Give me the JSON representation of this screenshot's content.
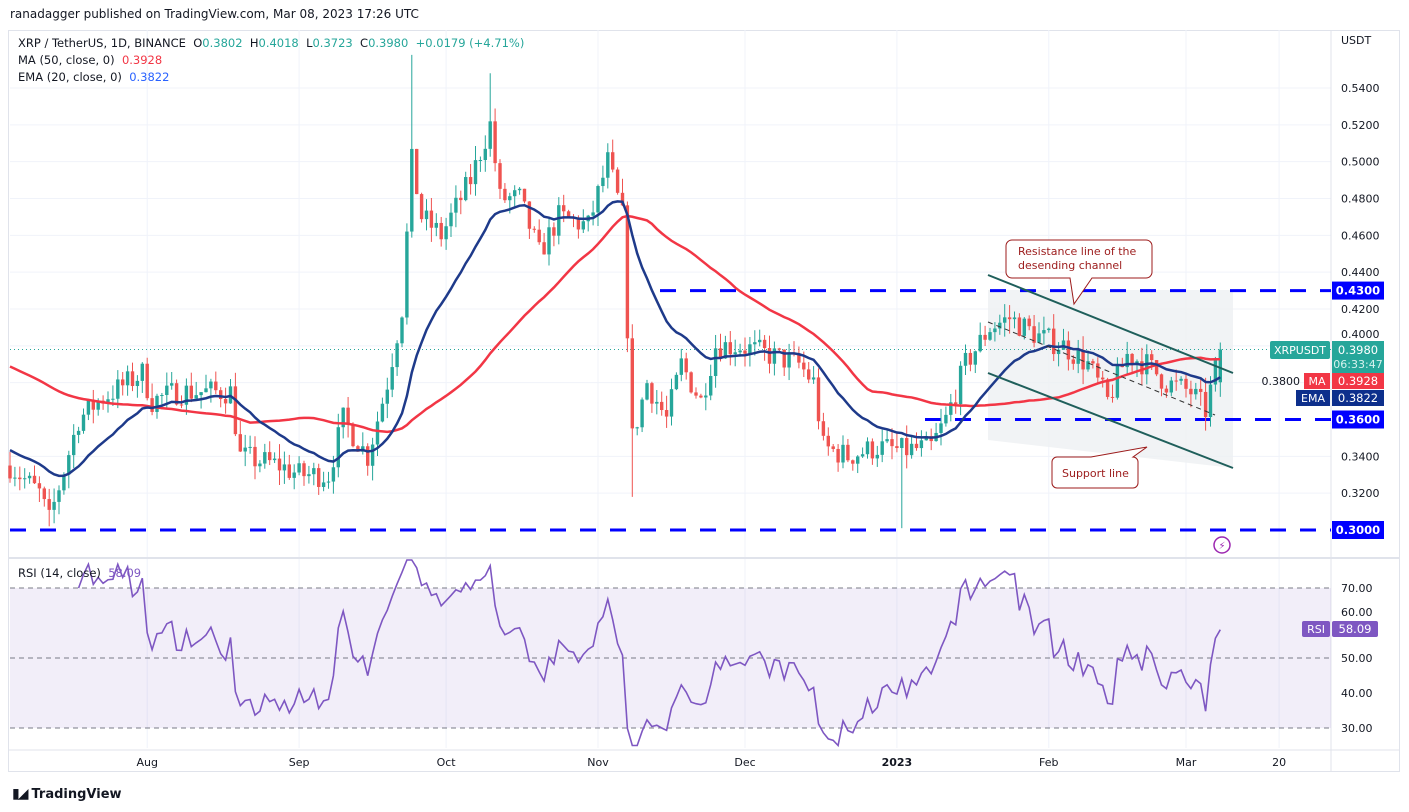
{
  "publisher": "ranadagger published on TradingView.com, Mar 08, 2023 17:26 UTC",
  "legend": {
    "symbol": "XRP / TetherUS, 1D, BINANCE",
    "o_label": "O",
    "o": "0.3802",
    "h_label": "H",
    "h": "0.4018",
    "l_label": "L",
    "l": "0.3723",
    "c_label": "C",
    "c": "0.3980",
    "change": "+0.0179 (+4.71%)",
    "ma_label": "MA (50, close, 0)",
    "ma_value": "0.3928",
    "ema_label": "EMA (20, close, 0)",
    "ema_value": "0.3822",
    "rsi_label": "RSI (14, close)",
    "rsi_value": "58.09"
  },
  "axis_currency": "USDT",
  "footer_logo": "TradingView",
  "colors": {
    "up": "#26a69a",
    "down": "#ef5350",
    "ma": "#f23645",
    "ema": "#1e3a8a",
    "rsi": "#7e57c2",
    "level": "#0000ff",
    "channel": "#1f5f5b",
    "callout": "#9c1b1b"
  },
  "chart_data": {
    "type": "candlestick",
    "symbol": "XRPUSDT",
    "start_date": "2022-07-04",
    "ylim": [
      0.29,
      0.565
    ],
    "y_ticks": [
      "0.3200",
      "0.3400",
      "0.3800",
      "0.4000",
      "0.4200",
      "0.4400",
      "0.4600",
      "0.4800",
      "0.5000",
      "0.5200",
      "0.5400"
    ],
    "x_ticks": [
      {
        "label": "Aug",
        "day": 28
      },
      {
        "label": "Sep",
        "day": 59
      },
      {
        "label": "Oct",
        "day": 89
      },
      {
        "label": "Nov",
        "day": 120
      },
      {
        "label": "Dec",
        "day": 150
      },
      {
        "label": "2023",
        "day": 181
      },
      {
        "label": "Feb",
        "day": 212
      },
      {
        "label": "Mar",
        "day": 240
      },
      {
        "label": "20",
        "day": 259
      }
    ],
    "close_waypoints": [
      [
        0,
        0.335
      ],
      [
        6,
        0.32
      ],
      [
        8,
        0.305
      ],
      [
        14,
        0.36
      ],
      [
        18,
        0.37
      ],
      [
        27,
        0.385
      ],
      [
        29,
        0.37
      ],
      [
        34,
        0.375
      ],
      [
        45,
        0.375
      ],
      [
        47,
        0.34
      ],
      [
        55,
        0.335
      ],
      [
        59,
        0.33
      ],
      [
        65,
        0.33
      ],
      [
        68,
        0.36
      ],
      [
        73,
        0.34
      ],
      [
        77,
        0.38
      ],
      [
        80,
        0.42
      ],
      [
        82,
        0.5
      ],
      [
        84,
        0.47
      ],
      [
        88,
        0.46
      ],
      [
        94,
        0.49
      ],
      [
        98,
        0.52
      ],
      [
        100,
        0.48
      ],
      [
        104,
        0.48
      ],
      [
        108,
        0.45
      ],
      [
        112,
        0.47
      ],
      [
        118,
        0.465
      ],
      [
        122,
        0.5
      ],
      [
        125,
        0.47
      ],
      [
        127,
        0.35
      ],
      [
        130,
        0.38
      ],
      [
        134,
        0.36
      ],
      [
        137,
        0.39
      ],
      [
        141,
        0.37
      ],
      [
        144,
        0.4
      ],
      [
        149,
        0.4
      ],
      [
        155,
        0.395
      ],
      [
        161,
        0.39
      ],
      [
        164,
        0.38
      ],
      [
        166,
        0.345
      ],
      [
        171,
        0.34
      ],
      [
        177,
        0.345
      ],
      [
        182,
        0.343
      ],
      [
        188,
        0.345
      ],
      [
        191,
        0.36
      ],
      [
        195,
        0.39
      ],
      [
        200,
        0.41
      ],
      [
        204,
        0.415
      ],
      [
        210,
        0.405
      ],
      [
        215,
        0.4
      ],
      [
        220,
        0.39
      ],
      [
        224,
        0.37
      ],
      [
        228,
        0.395
      ],
      [
        232,
        0.39
      ],
      [
        236,
        0.38
      ],
      [
        241,
        0.375
      ],
      [
        244,
        0.365
      ],
      [
        247,
        0.398
      ]
    ],
    "last_candle": {
      "open": 0.3802,
      "high": 0.4018,
      "low": 0.3723,
      "close": 0.398
    },
    "indicators": {
      "ma_period": 50,
      "ema_period": 20,
      "rsi_period": 14
    },
    "levels": [
      {
        "price": 0.43,
        "label": "0.4300"
      },
      {
        "price": 0.36,
        "label": "0.3600"
      },
      {
        "price": 0.3,
        "label": "0.3000"
      }
    ],
    "price_tags": {
      "symbol": "XRPUSDT",
      "price": "0.3980",
      "countdown": "06:33:47",
      "ma_tag": "MA",
      "ma": "0.3928",
      "ema_tag": "EMA",
      "ema": "0.3822"
    },
    "rsi_ticks": [
      "30.00",
      "40.00",
      "50.00",
      "60.00",
      "70.00"
    ],
    "rsi_tag": {
      "label": "RSI",
      "value": "58.09"
    },
    "annotations": {
      "resistance": "Resistance line of the desending channel",
      "support": "Support line"
    }
  }
}
